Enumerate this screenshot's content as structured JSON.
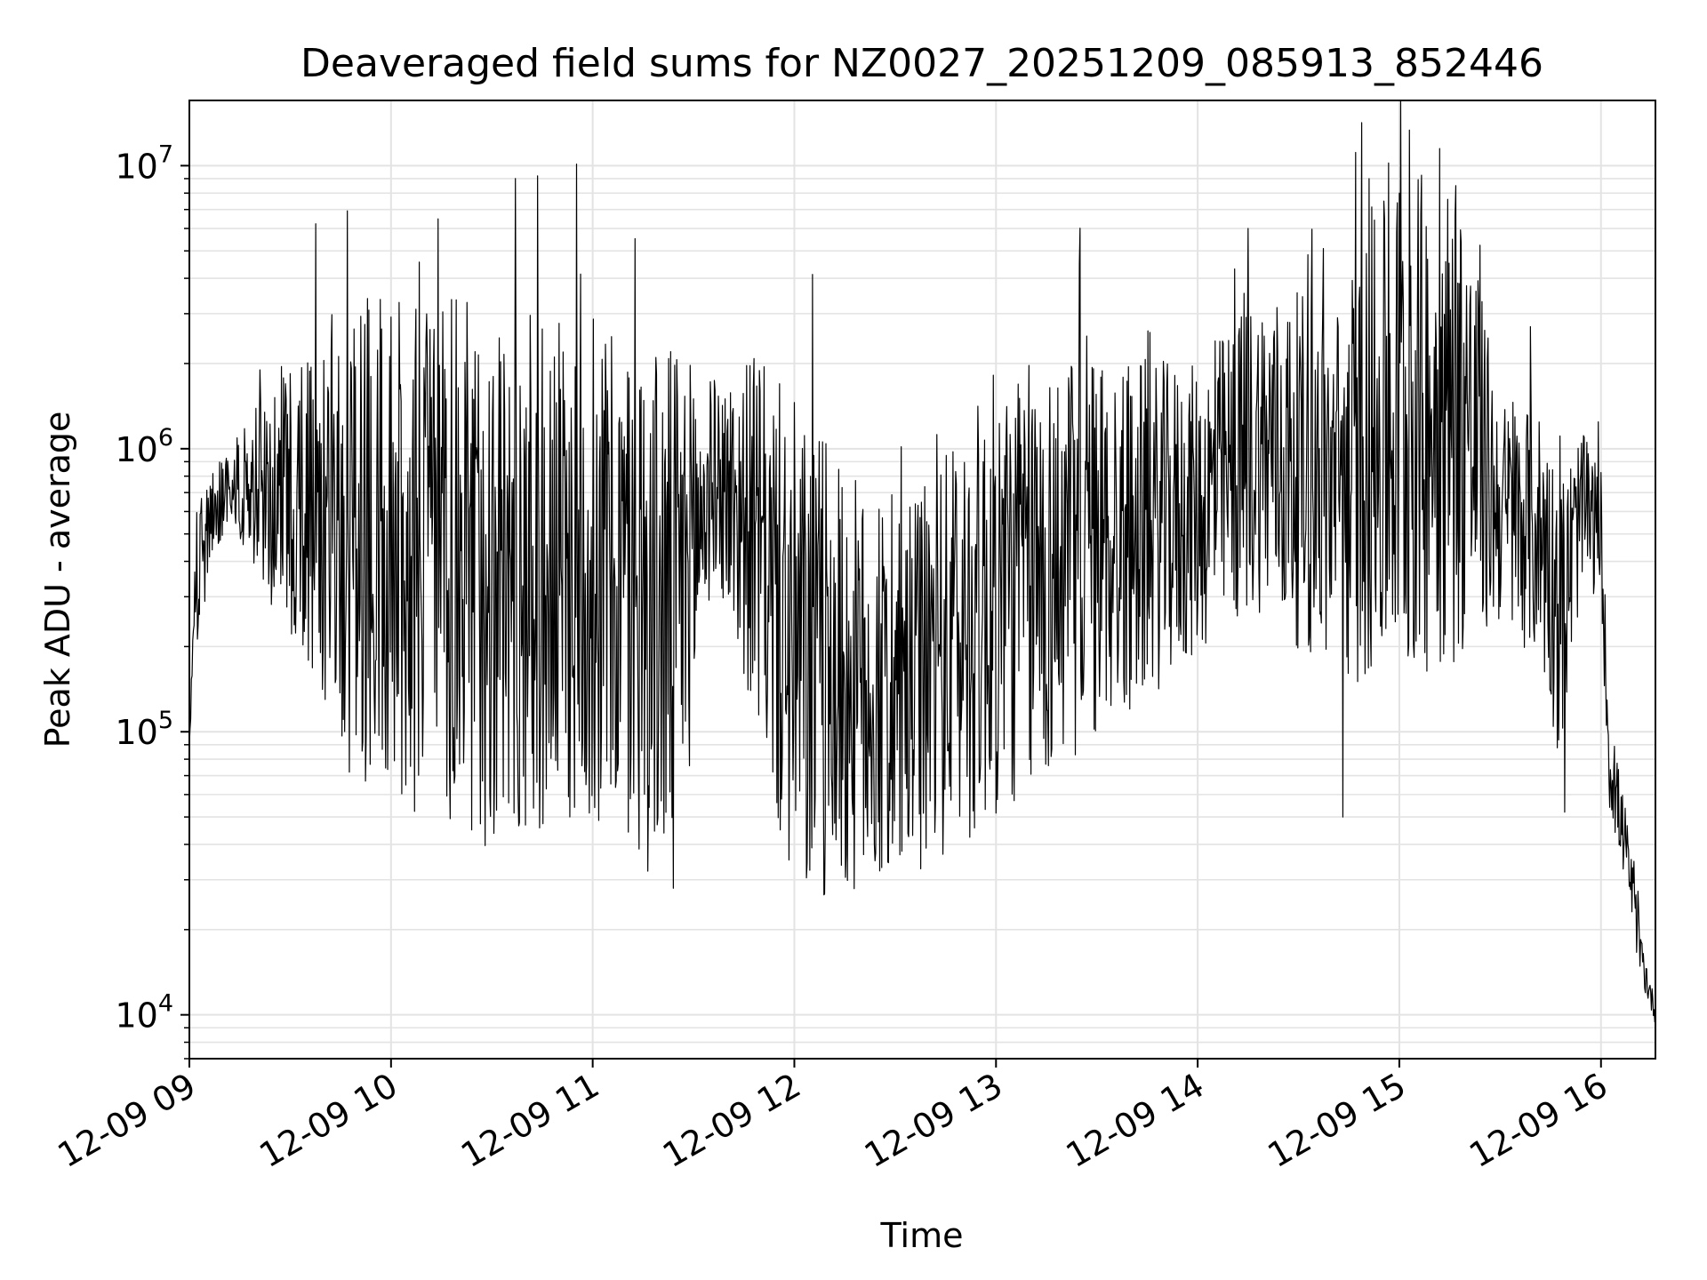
{
  "chart_data": {
    "type": "line",
    "title": "Deaveraged field sums for NZ0027_20251209_085913_852446",
    "xlabel": "Time",
    "ylabel": "Peak ADU - average",
    "yscale": "log",
    "ylim": [
      7000,
      17000000
    ],
    "xlim_hours": [
      9.0,
      16.27
    ],
    "grid": true,
    "legend": "none",
    "x_ticks": [
      {
        "hour": 9,
        "label": "12-09 09"
      },
      {
        "hour": 10,
        "label": "12-09 10"
      },
      {
        "hour": 11,
        "label": "12-09 11"
      },
      {
        "hour": 12,
        "label": "12-09 12"
      },
      {
        "hour": 13,
        "label": "12-09 13"
      },
      {
        "hour": 14,
        "label": "12-09 14"
      },
      {
        "hour": 15,
        "label": "12-09 15"
      },
      {
        "hour": 16,
        "label": "12-09 16"
      }
    ],
    "y_ticks": [
      {
        "value": 10000,
        "base": "10",
        "exp": "4"
      },
      {
        "value": 100000,
        "base": "10",
        "exp": "5"
      },
      {
        "value": 1000000,
        "base": "10",
        "exp": "6"
      },
      {
        "value": 10000000,
        "base": "10",
        "exp": "7"
      }
    ],
    "series": [
      {
        "name": "field sums",
        "color": "#000000",
        "samples_per_hour": 300,
        "envelope": [
          {
            "hour": 9.0,
            "median": 90000,
            "spread": 0.0
          },
          {
            "hour": 9.03,
            "median": 300000,
            "spread": 0.25
          },
          {
            "hour": 9.1,
            "median": 550000,
            "spread": 0.15
          },
          {
            "hour": 9.2,
            "median": 750000,
            "spread": 0.1
          },
          {
            "hour": 9.35,
            "median": 700000,
            "spread": 0.3
          },
          {
            "hour": 9.55,
            "median": 650000,
            "spread": 0.45
          },
          {
            "hour": 9.8,
            "median": 500000,
            "spread": 0.75
          },
          {
            "hour": 10.5,
            "median": 350000,
            "spread": 0.85
          },
          {
            "hour": 11.0,
            "median": 350000,
            "spread": 0.75
          },
          {
            "hour": 11.4,
            "median": 250000,
            "spread": 0.85
          },
          {
            "hour": 11.6,
            "median": 800000,
            "spread": 0.3
          },
          {
            "hour": 11.8,
            "median": 500000,
            "spread": 0.55
          },
          {
            "hour": 12.0,
            "median": 180000,
            "spread": 0.8
          },
          {
            "hour": 12.5,
            "median": 120000,
            "spread": 0.55
          },
          {
            "hour": 13.0,
            "median": 300000,
            "spread": 0.7
          },
          {
            "hour": 13.5,
            "median": 450000,
            "spread": 0.6
          },
          {
            "hour": 14.0,
            "median": 600000,
            "spread": 0.45
          },
          {
            "hour": 14.3,
            "median": 1000000,
            "spread": 0.5
          },
          {
            "hour": 14.7,
            "median": 700000,
            "spread": 0.6
          },
          {
            "hour": 15.0,
            "median": 1200000,
            "spread": 0.8
          },
          {
            "hour": 15.3,
            "median": 1300000,
            "spread": 0.75
          },
          {
            "hour": 15.5,
            "median": 600000,
            "spread": 0.35
          },
          {
            "hour": 15.7,
            "median": 500000,
            "spread": 0.4
          },
          {
            "hour": 15.8,
            "median": 250000,
            "spread": 0.45
          },
          {
            "hour": 15.9,
            "median": 600000,
            "spread": 0.25
          },
          {
            "hour": 16.0,
            "median": 500000,
            "spread": 0.2
          },
          {
            "hour": 16.04,
            "median": 80000,
            "spread": 0.15
          },
          {
            "hour": 16.12,
            "median": 40000,
            "spread": 0.12
          },
          {
            "hour": 16.2,
            "median": 16000,
            "spread": 0.08
          },
          {
            "hour": 16.27,
            "median": 10000,
            "spread": 0.03
          }
        ],
        "notable_points": [
          {
            "hour": 9.35,
            "value": 1900000
          },
          {
            "hour": 9.9,
            "value": 1800000
          },
          {
            "hour": 10.4,
            "value": 45000
          },
          {
            "hour": 11.4,
            "value": 28000
          },
          {
            "hour": 11.5,
            "value": 1500000
          },
          {
            "hour": 12.4,
            "value": 35000
          },
          {
            "hour": 13.45,
            "value": 2500000
          },
          {
            "hour": 14.25,
            "value": 6000000
          },
          {
            "hour": 14.72,
            "value": 50000
          },
          {
            "hour": 14.85,
            "value": 9000000
          },
          {
            "hour": 15.0,
            "value": 8000000
          },
          {
            "hour": 15.2,
            "value": 11500000
          },
          {
            "hour": 15.28,
            "value": 8500000
          },
          {
            "hour": 15.65,
            "value": 2700000
          },
          {
            "hour": 15.82,
            "value": 52000
          }
        ]
      }
    ]
  }
}
